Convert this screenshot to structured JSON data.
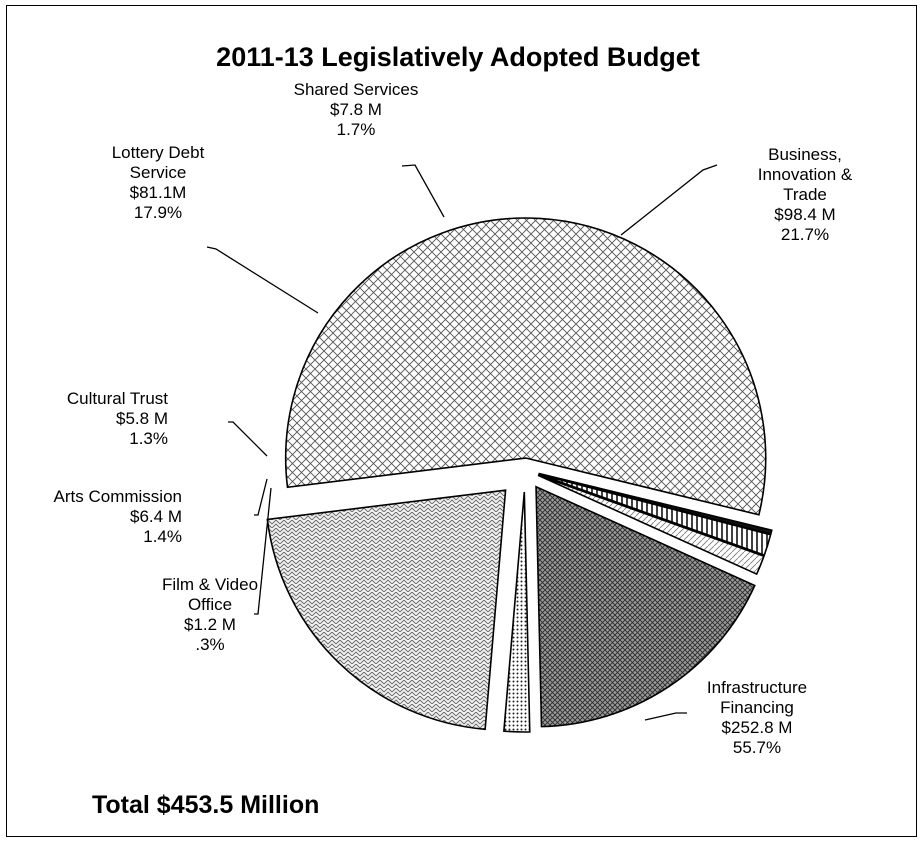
{
  "chart_data": {
    "type": "pie",
    "title": "2011-13 Legislatively Adopted Budget",
    "total_label": "Total $453.5 Million",
    "slices": [
      {
        "name": "Infrastructure Financing",
        "label_lines": [
          "Infrastructure",
          "Financing",
          "$252.8 M",
          "55.7%"
        ],
        "value": 252.8,
        "percent": 55.7,
        "pattern": "crosshatch"
      },
      {
        "name": "Film & Video Office",
        "label_lines": [
          "Film & Video",
          "Office",
          "$1.2 M",
          ".3%"
        ],
        "value": 1.2,
        "percent": 0.3,
        "pattern": "solid-dark"
      },
      {
        "name": "Arts Commission",
        "label_lines": [
          "Arts Commission",
          "$6.4 M",
          "1.4%"
        ],
        "value": 6.4,
        "percent": 1.4,
        "pattern": "vertical"
      },
      {
        "name": "Cultural Trust",
        "label_lines": [
          "Cultural Trust",
          "$5.8 M",
          "1.3%"
        ],
        "value": 5.8,
        "percent": 1.3,
        "pattern": "light-diagonal"
      },
      {
        "name": "Lottery Debt Service",
        "label_lines": [
          "Lottery Debt",
          "Service",
          "$81.1M",
          "17.9%"
        ],
        "value": 81.1,
        "percent": 17.9,
        "pattern": "dark-crosshatch"
      },
      {
        "name": "Shared Services",
        "label_lines": [
          "Shared Services",
          "$7.8 M",
          "1.7%"
        ],
        "value": 7.8,
        "percent": 1.7,
        "pattern": "dots"
      },
      {
        "name": "Business, Innovation & Trade",
        "label_lines": [
          "Business,",
          "Innovation &",
          "Trade",
          "$98.4 M",
          "21.7%"
        ],
        "value": 98.4,
        "percent": 21.7,
        "pattern": "zigzag"
      }
    ]
  }
}
